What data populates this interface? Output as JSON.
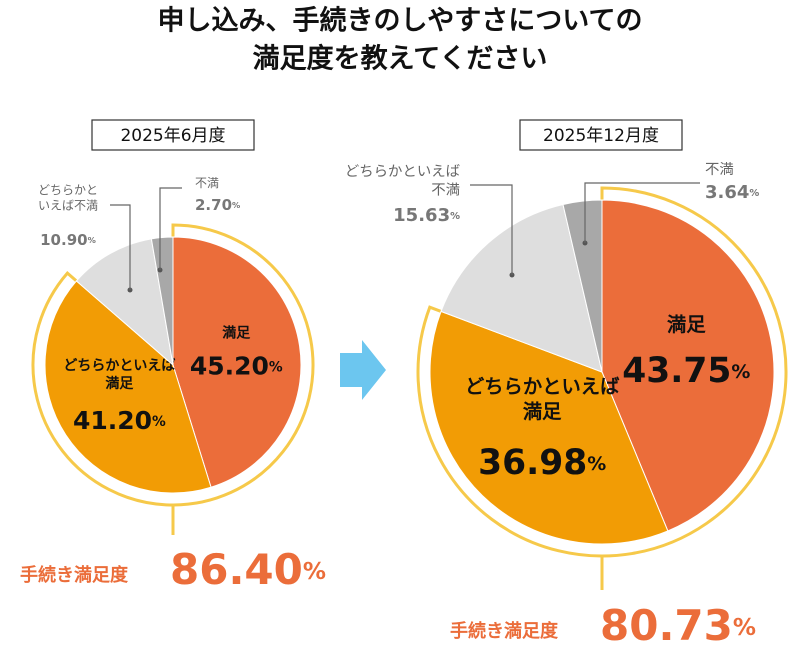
{
  "title_lines": [
    "申し込み、手続きのしやすさについての",
    "満足度を教えてください"
  ],
  "chart_data": [
    {
      "type": "pie",
      "subtitle": "2025年6月度",
      "categories": [
        "満足",
        "どちらかといえば\n満足",
        "どちらかと\nいえば不満",
        "不満"
      ],
      "values": [
        45.2,
        41.2,
        10.9,
        2.7
      ],
      "value_labels": [
        "45.20%",
        "41.20%",
        "10.90%",
        "2.70%"
      ],
      "colors": [
        "#eb6d3a",
        "#f29c05",
        "#dedede",
        "#a8a8a8"
      ],
      "highlight_color": "#f6c94a",
      "summary_label": "手続き満足度",
      "summary_value": 86.4,
      "summary_value_label": "86.40%"
    },
    {
      "type": "pie",
      "subtitle": "2025年12月度",
      "categories": [
        "満足",
        "どちらかといえば\n満足",
        "どちらかといえば\n不満",
        "不満"
      ],
      "values": [
        43.75,
        36.98,
        15.63,
        3.64
      ],
      "value_labels": [
        "43.75%",
        "36.98%",
        "15.63%",
        "3.64%"
      ],
      "colors": [
        "#eb6d3a",
        "#f29c05",
        "#dedede",
        "#a8a8a8"
      ],
      "highlight_color": "#f6c94a",
      "summary_label": "手続き満足度",
      "summary_value": 80.73,
      "summary_value_label": "80.73%"
    }
  ]
}
